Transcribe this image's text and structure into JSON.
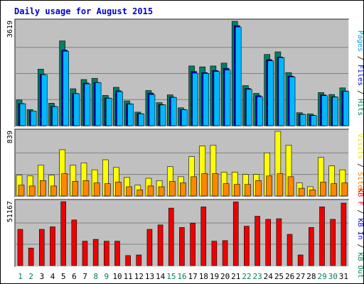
{
  "chart_data": {
    "type": "bar",
    "title": "Daily usage for August 2015",
    "categories": [
      "1",
      "2",
      "3",
      "4",
      "5",
      "6",
      "7",
      "8",
      "9",
      "10",
      "11",
      "12",
      "13",
      "14",
      "15",
      "16",
      "17",
      "18",
      "19",
      "20",
      "21",
      "22",
      "23",
      "24",
      "25",
      "26",
      "27",
      "28",
      "29",
      "30",
      "31"
    ],
    "weekend_days": [
      "1",
      "2",
      "8",
      "9",
      "15",
      "16",
      "22",
      "23",
      "29",
      "30"
    ],
    "colors": {
      "weekday_label": "#000000",
      "weekend_label": "#00805c",
      "background": "#c0c0c0",
      "grid": "#808080"
    },
    "panels": [
      {
        "ymax_label": "3619",
        "ylim": [
          0,
          3619
        ],
        "right_label": [
          {
            "text": "Pages",
            "color": "#00a0e0"
          },
          {
            "text": " / ",
            "color": "#000000"
          },
          {
            "text": "Files",
            "color": "#0000cc"
          },
          {
            "text": " / ",
            "color": "#000000"
          },
          {
            "text": "Hits",
            "color": "#00805c"
          }
        ],
        "series": [
          {
            "name": "Hits",
            "color": "#008060",
            "values": [
              890,
              560,
              1960,
              780,
              2940,
              1280,
              1600,
              1640,
              1050,
              1330,
              860,
              470,
              1220,
              800,
              1070,
              620,
              2070,
              2040,
              2070,
              2170,
              3619,
              1390,
              1120,
              2470,
              2560,
              1840,
              450,
              410,
              1150,
              1080,
              1310
            ]
          },
          {
            "name": "Files",
            "color": "#0000cc",
            "values": [
              770,
              510,
              1780,
              670,
              2620,
              1120,
              1480,
              1500,
              960,
              1210,
              760,
              420,
              1130,
              730,
              990,
              560,
              1880,
              1840,
              1910,
              1990,
              3470,
              1290,
              1040,
              2290,
              2380,
              1720,
              400,
              360,
              1070,
              1000,
              1200
            ]
          },
          {
            "name": "Pages",
            "color": "#00b8ff",
            "values": [
              760,
              510,
              1770,
              660,
              2580,
              1110,
              1450,
              1490,
              950,
              1180,
              750,
              410,
              1080,
              720,
              980,
              550,
              1820,
              1810,
              1880,
              1930,
              3420,
              1260,
              1000,
              2250,
              2360,
              1690,
              390,
              350,
              1040,
              990,
              1190
            ]
          }
        ]
      },
      {
        "ymax_label": "839",
        "ylim": [
          0,
          839
        ],
        "right_label": [
          {
            "text": "Visits",
            "color": "#e8e800"
          },
          {
            "text": " / ",
            "color": "#000000"
          },
          {
            "text": "Sites",
            "color": "#f08000"
          }
        ],
        "series": [
          {
            "name": "Visits",
            "color": "#ffff00",
            "values": [
              270,
              260,
              400,
              270,
              600,
              400,
              430,
              340,
              470,
              370,
              240,
              140,
              230,
              200,
              380,
              250,
              510,
              650,
              660,
              310,
              310,
              280,
              280,
              560,
              839,
              660,
              170,
              120,
              500,
              390,
              340
            ]
          },
          {
            "name": "Sites",
            "color": "#ff8800",
            "values": [
              140,
              130,
              200,
              130,
              290,
              190,
              200,
              170,
              160,
              180,
              120,
              80,
              130,
              120,
              190,
              170,
              250,
              290,
              290,
              160,
              150,
              150,
              200,
              260,
              290,
              250,
              100,
              80,
              180,
              160,
              170
            ]
          }
        ]
      },
      {
        "ymax_label": "51167",
        "ylim": [
          0,
          51167
        ],
        "right_label": [
          {
            "text": "KB F",
            "color": "#ff0000"
          },
          {
            "text": " / ",
            "color": "#000000"
          },
          {
            "text": "KB In",
            "color": "#0000cc"
          },
          {
            "text": " / ",
            "color": "#000000"
          },
          {
            "text": "KB Out",
            "color": "#00805c"
          }
        ],
        "series": [
          {
            "name": "KB F",
            "color": "#ee0000",
            "values": [
              29000,
              14000,
              29000,
              31000,
              51167,
              36500,
              19500,
              21000,
              19500,
              19500,
              8000,
              8500,
              29000,
              32500,
              46000,
              30500,
              34000,
              47000,
              19500,
              20000,
              51000,
              31500,
              39500,
              37000,
              37500,
              25000,
              8500,
              30500,
              47000,
              37000,
              50000
            ]
          }
        ]
      }
    ]
  }
}
